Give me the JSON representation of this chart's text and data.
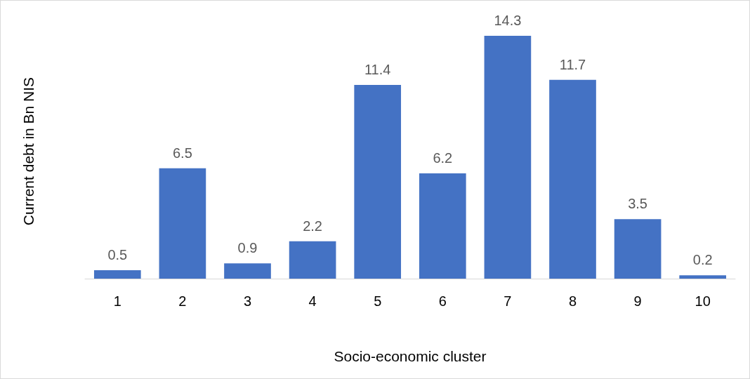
{
  "chart_data": {
    "type": "bar",
    "xlabel": "Socio-economic cluster",
    "ylabel": "Current debt in Bn NIS",
    "categories": [
      "1",
      "2",
      "3",
      "4",
      "5",
      "6",
      "7",
      "8",
      "9",
      "10"
    ],
    "values": [
      0.5,
      6.5,
      0.9,
      2.2,
      11.4,
      6.2,
      14.3,
      11.7,
      3.5,
      0.2
    ],
    "color": "#4472c4",
    "data_labels": true
  }
}
